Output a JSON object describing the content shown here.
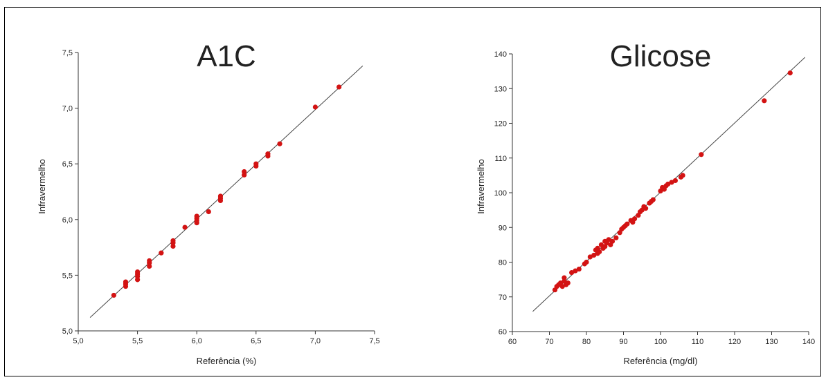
{
  "colors": {
    "point": "#d31313",
    "line": "#444444",
    "axis": "#333333"
  },
  "chart_data": [
    {
      "type": "scatter",
      "title": "A1C",
      "xlabel": "Referência (%)",
      "ylabel": "Infravermelho",
      "xlim": [
        5.0,
        7.5
      ],
      "ylim": [
        5.0,
        7.5
      ],
      "x_ticks": [
        5.0,
        5.5,
        6.0,
        6.5,
        7.0,
        7.5
      ],
      "y_ticks": [
        5.0,
        5.5,
        6.0,
        6.5,
        7.0,
        7.5
      ],
      "x_tick_labels": [
        "5,0",
        "5,5",
        "6,0",
        "6,5",
        "7,0",
        "7,5"
      ],
      "y_tick_labels": [
        "5,0",
        "5,5",
        "6,0",
        "6,5",
        "7,0",
        "7,5"
      ],
      "fit_line": {
        "x": [
          5.1,
          7.4
        ],
        "y": [
          5.12,
          7.38
        ]
      },
      "points": {
        "x": [
          5.3,
          5.4,
          5.4,
          5.4,
          5.5,
          5.5,
          5.5,
          5.5,
          5.6,
          5.6,
          5.6,
          5.7,
          5.8,
          5.8,
          5.8,
          5.9,
          6.0,
          6.0,
          6.0,
          6.0,
          6.1,
          6.2,
          6.2,
          6.2,
          6.4,
          6.4,
          6.5,
          6.5,
          6.6,
          6.6,
          6.7,
          7.0,
          7.2
        ],
        "y": [
          5.32,
          5.4,
          5.42,
          5.44,
          5.46,
          5.49,
          5.51,
          5.53,
          5.58,
          5.61,
          5.63,
          5.7,
          5.76,
          5.79,
          5.81,
          5.93,
          5.97,
          5.99,
          6.01,
          6.03,
          6.07,
          6.17,
          6.19,
          6.21,
          6.4,
          6.43,
          6.48,
          6.5,
          6.57,
          6.59,
          6.68,
          7.01,
          7.19
        ]
      }
    },
    {
      "type": "scatter",
      "title": "Glicose",
      "xlabel": "Referência (mg/dl)",
      "ylabel": "Infravermelho",
      "xlim": [
        60,
        140
      ],
      "ylim": [
        60,
        140
      ],
      "x_ticks": [
        60,
        70,
        80,
        90,
        100,
        110,
        120,
        130,
        140
      ],
      "y_ticks": [
        60,
        70,
        80,
        90,
        100,
        110,
        120,
        130,
        140
      ],
      "x_tick_labels": [
        "60",
        "70",
        "80",
        "90",
        "100",
        "110",
        "120",
        "130",
        "140"
      ],
      "y_tick_labels": [
        "60",
        "70",
        "80",
        "90",
        "100",
        "110",
        "120",
        "130",
        "140"
      ],
      "fit_line": {
        "x": [
          65.5,
          139
        ],
        "y": [
          65.8,
          139
        ]
      },
      "points": {
        "x": [
          71.5,
          72,
          72.5,
          73,
          73.5,
          74,
          74,
          74.5,
          75,
          76,
          77,
          78,
          79.5,
          80,
          81,
          82,
          82.5,
          83,
          83,
          83.5,
          84,
          84.5,
          85,
          85,
          85.5,
          86,
          86.5,
          87,
          88,
          89,
          89.5,
          90,
          90.5,
          91,
          92,
          92.5,
          93,
          94,
          94.5,
          95,
          95.5,
          96,
          97,
          97.5,
          98,
          100,
          100.5,
          101,
          101.5,
          102,
          103,
          104,
          105.5,
          106,
          111,
          128,
          135
        ],
        "y": [
          72,
          73,
          73.5,
          74,
          73,
          74.5,
          75.5,
          73.5,
          74,
          77,
          77.5,
          78,
          79.5,
          80,
          81.5,
          82,
          83.5,
          84,
          82.5,
          83,
          85,
          84,
          86,
          84.5,
          85.5,
          86.5,
          85,
          86,
          87,
          88.5,
          89.5,
          90,
          90.5,
          91,
          92,
          91.5,
          92.5,
          93.5,
          94.5,
          95,
          96,
          95.5,
          97,
          97.5,
          98,
          100.5,
          101.5,
          101,
          102,
          102.5,
          103,
          103.5,
          104.5,
          105,
          111,
          126.5,
          134.5
        ]
      }
    }
  ]
}
